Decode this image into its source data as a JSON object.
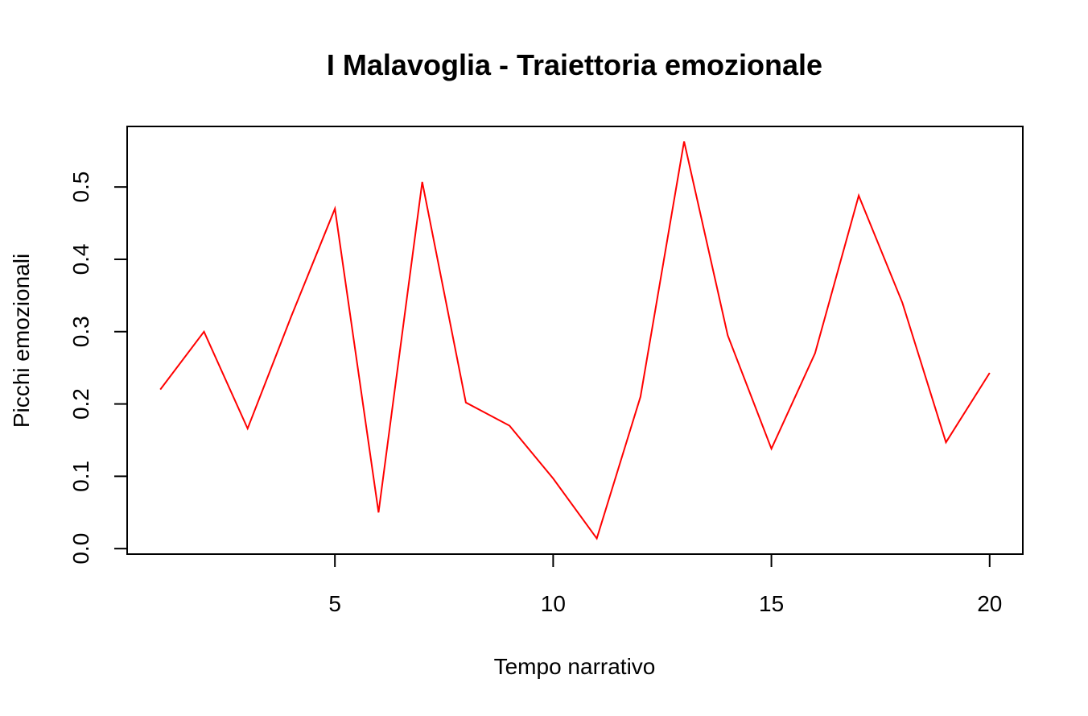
{
  "chart_data": {
    "type": "line",
    "title": "I Malavoglia - Traiettoria emozionale",
    "xlabel": "Tempo narrativo",
    "ylabel": "Picchi emozionali",
    "x": [
      1,
      2,
      3,
      4,
      5,
      6,
      7,
      8,
      9,
      10,
      11,
      12,
      13,
      14,
      15,
      16,
      17,
      18,
      19,
      20
    ],
    "series": [
      {
        "values": [
          0.22,
          0.3,
          0.166,
          0.321,
          0.47,
          0.05,
          0.507,
          0.202,
          0.17,
          0.097,
          0.014,
          0.21,
          0.563,
          0.295,
          0.138,
          0.27,
          0.488,
          0.34,
          0.147,
          0.243
        ]
      }
    ],
    "xticks": [
      {
        "value": 5,
        "label": "5"
      },
      {
        "value": 10,
        "label": "10"
      },
      {
        "value": 15,
        "label": "15"
      },
      {
        "value": 20,
        "label": "20"
      }
    ],
    "yticks": [
      {
        "value": 0.0,
        "label": "0.0"
      },
      {
        "value": 0.1,
        "label": "0.1"
      },
      {
        "value": 0.2,
        "label": "0.2"
      },
      {
        "value": 0.3,
        "label": "0.3"
      },
      {
        "value": 0.4,
        "label": "0.4"
      },
      {
        "value": 0.5,
        "label": "0.5"
      }
    ],
    "xlim": [
      0.24,
      20.76
    ],
    "ylim": [
      -0.0076,
      0.5837
    ],
    "grid": false,
    "line_color": "#ff0000"
  }
}
